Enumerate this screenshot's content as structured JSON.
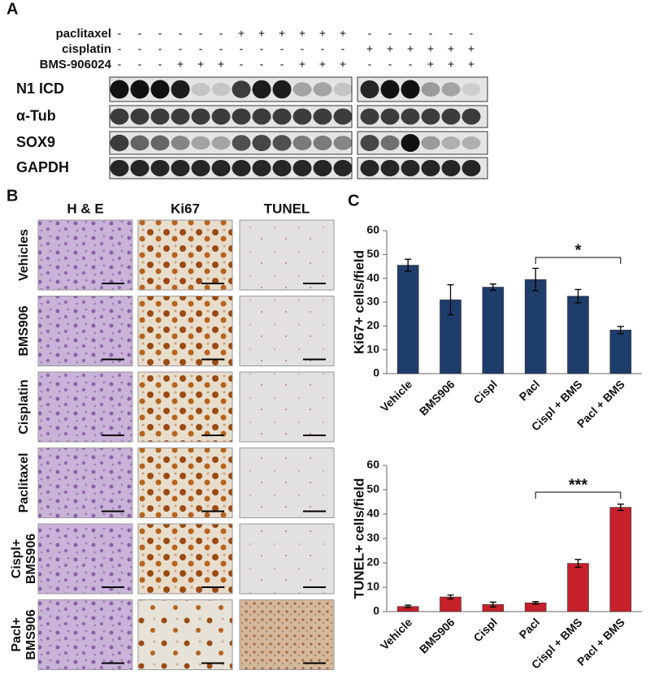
{
  "panel_a": {
    "label": "A",
    "treatments": [
      {
        "name": "paclitaxel",
        "signs": [
          "-",
          "-",
          "-",
          "-",
          "-",
          "-",
          "+",
          "+",
          "+",
          "+",
          "+",
          "+",
          "-",
          "-",
          "-",
          "-",
          "-",
          "-"
        ]
      },
      {
        "name": "cisplatin",
        "signs": [
          "-",
          "-",
          "-",
          "-",
          "-",
          "-",
          "-",
          "-",
          "-",
          "-",
          "-",
          "-",
          "+",
          "+",
          "+",
          "+",
          "+",
          "+"
        ]
      },
      {
        "name": "BMS-906024",
        "signs": [
          "-",
          "-",
          "-",
          "+",
          "+",
          "+",
          "-",
          "-",
          "-",
          "+",
          "+",
          "+",
          "-",
          "-",
          "-",
          "+",
          "+",
          "+"
        ]
      }
    ],
    "blots": [
      "N1 ICD",
      "α-Tub",
      "SOX9",
      "GAPDH"
    ]
  },
  "panel_b": {
    "label": "B",
    "columns": [
      "H & E",
      "Ki67",
      "TUNEL"
    ],
    "rows": [
      [
        "Vehicles"
      ],
      [
        "BMS906"
      ],
      [
        "Cisplatin"
      ],
      [
        "Paclitaxel"
      ],
      [
        "Cispl+",
        "BMS906"
      ],
      [
        "Pacl+",
        "BMS906"
      ]
    ]
  },
  "panel_c": {
    "label": "C"
  },
  "chart_data": [
    {
      "type": "bar",
      "ylabel": "Ki67+ cells/field",
      "categories": [
        "Vehicle",
        "BMS906",
        "Cispl",
        "Pacl",
        "Cispl + BMS",
        "Pacl + BMS"
      ],
      "values": [
        45.5,
        31,
        36.3,
        39.5,
        32.5,
        18.3
      ],
      "errors": [
        2.5,
        6.3,
        1.3,
        4.7,
        2.8,
        1.5
      ],
      "color": "#1f3d6b",
      "ylim": [
        0,
        60
      ],
      "yticks": [
        0,
        10,
        20,
        30,
        40,
        50,
        60
      ],
      "annotation": "*"
    },
    {
      "type": "bar",
      "ylabel": "TUNEL+ cells/field",
      "categories": [
        "Vehicle",
        "BMS906",
        "Cispl",
        "Pacl",
        "Cispl + BMS",
        "Pacl + BMS"
      ],
      "values": [
        2.1,
        6,
        2.9,
        3.6,
        19.8,
        42.8
      ],
      "errors": [
        0.5,
        0.8,
        1,
        0.5,
        1.6,
        1.3
      ],
      "color": "#c4212b",
      "ylim": [
        0,
        60
      ],
      "yticks": [
        0,
        10,
        20,
        30,
        40,
        50,
        60
      ],
      "annotation": "***"
    }
  ]
}
